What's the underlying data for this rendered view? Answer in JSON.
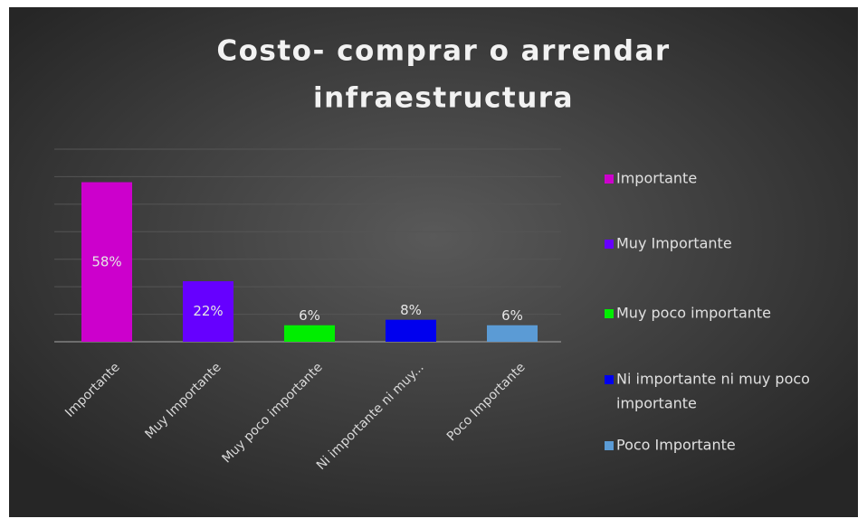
{
  "chart_data": {
    "type": "bar",
    "title": [
      "Costo-  comprar  o arrendar",
      "infraestructura"
    ],
    "categories": [
      "Importante",
      "Muy Importante",
      "Muy poco importante",
      "Ni importante ni muy...",
      "Poco Importante"
    ],
    "values": [
      58,
      22,
      6,
      8,
      6
    ],
    "value_labels": [
      "58%",
      "22%",
      "6%",
      "8%",
      "6%"
    ],
    "colors": [
      "#cc00cc",
      "#6600ff",
      "#00ee00",
      "#0000ee",
      "#5b9bd5"
    ],
    "legend": [
      [
        "Importante"
      ],
      [
        "Muy Importante"
      ],
      [
        "Muy poco importante"
      ],
      [
        "Ni importante ni muy poco",
        "importante"
      ],
      [
        "Poco Importante"
      ]
    ],
    "ylim": [
      0,
      70
    ],
    "yticks": [
      0,
      10,
      20,
      30,
      40,
      50,
      60,
      70
    ],
    "grid": true
  }
}
